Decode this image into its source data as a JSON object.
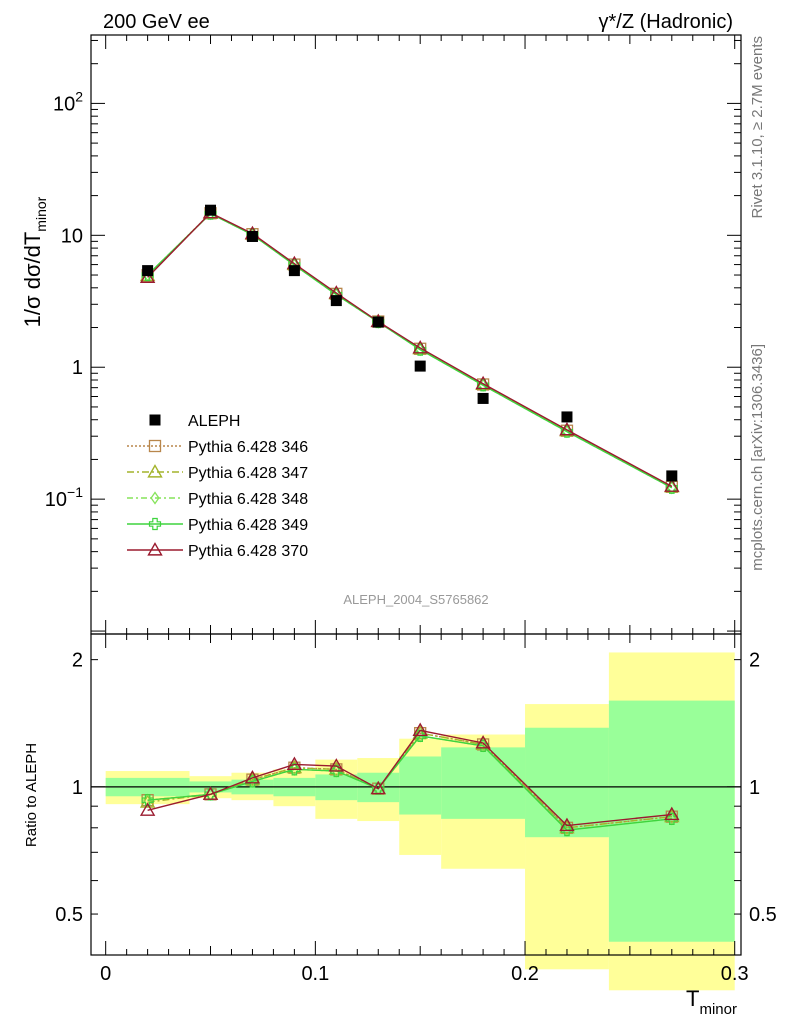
{
  "header": {
    "left": "200 GeV ee",
    "right": "γ*/Z (Hadronic)"
  },
  "side_labels": {
    "upper": "Rivet 3.1.10, ≥ 2.7M events",
    "lower": "mcplots.cern.ch [arXiv:1306.3436]"
  },
  "analysis_label": "ALEPH_2004_S5765862",
  "chart_data": [
    {
      "type": "scatter",
      "ylabel": "1/σ dσ/dT_minor",
      "ylabel_parts": {
        "prefix": "1/σ  dσ/dT",
        "sub": "minor"
      },
      "yscale": "log",
      "xlim": [
        -0.007,
        0.303
      ],
      "ylim": [
        0.0095,
        330
      ],
      "yticks": [
        {
          "value": 0.1,
          "label": "10",
          "sup": "−1"
        },
        {
          "value": 1,
          "label": "1",
          "sup": ""
        },
        {
          "value": 10,
          "label": "10",
          "sup": ""
        },
        {
          "value": 100,
          "label": "10",
          "sup": "2"
        }
      ],
      "legend": {
        "placement": "middle-left",
        "entries": [
          {
            "name": "ALEPH",
            "color": "#000000",
            "marker": "square",
            "dash": ""
          },
          {
            "name": "Pythia 6.428 346",
            "color": "#b8864b",
            "marker": "open-square",
            "dash": "2,2"
          },
          {
            "name": "Pythia 6.428 347",
            "color": "#a4b42c",
            "marker": "open-triangle",
            "dash": "7,3,2,3"
          },
          {
            "name": "Pythia 6.428 348",
            "color": "#86e35a",
            "marker": "open-diamond",
            "dash": "6,3,2,3"
          },
          {
            "name": "Pythia 6.428 349",
            "color": "#3ed43e",
            "marker": "open-cross",
            "dash": ""
          },
          {
            "name": "Pythia 6.428 370",
            "color": "#9b1b2f",
            "marker": "open-triangle",
            "dash": ""
          }
        ]
      },
      "x": [
        0.02,
        0.05,
        0.07,
        0.09,
        0.11,
        0.13,
        0.15,
        0.18,
        0.22,
        0.27
      ],
      "data": [
        5.4,
        15.5,
        9.8,
        5.4,
        3.2,
        2.2,
        1.02,
        0.58,
        0.42,
        0.15
      ],
      "series": [
        {
          "name": "Pythia 6.428 346",
          "values": [
            4.98,
            14.7,
            10.2,
            6.0,
            3.6,
            2.22,
            1.38,
            0.74,
            0.33,
            0.124
          ]
        },
        {
          "name": "Pythia 6.428 347",
          "values": [
            4.95,
            14.7,
            10.2,
            6.0,
            3.6,
            2.22,
            1.38,
            0.74,
            0.33,
            0.124
          ]
        },
        {
          "name": "Pythia 6.428 348",
          "values": [
            5.0,
            14.6,
            10.1,
            5.95,
            3.55,
            2.2,
            1.36,
            0.73,
            0.325,
            0.122
          ]
        },
        {
          "name": "Pythia 6.428 349",
          "values": [
            5.0,
            14.6,
            10.1,
            5.95,
            3.55,
            2.2,
            1.36,
            0.73,
            0.325,
            0.122
          ]
        },
        {
          "name": "Pythia 6.428 370",
          "values": [
            4.8,
            14.8,
            10.3,
            6.1,
            3.65,
            2.22,
            1.4,
            0.75,
            0.335,
            0.125
          ]
        }
      ]
    },
    {
      "type": "line",
      "ylabel": "Ratio to ALEPH",
      "xlabel": "T_minor",
      "xlabel_parts": {
        "prefix": "T",
        "sub": "minor"
      },
      "yscale": "log",
      "xlim": [
        -0.007,
        0.303
      ],
      "ylim": [
        0.4,
        2.3
      ],
      "yticks": [
        {
          "value": 0.5,
          "label": "0.5"
        },
        {
          "value": 1,
          "label": "1"
        },
        {
          "value": 2,
          "label": "2"
        }
      ],
      "xticks": [
        {
          "value": 0,
          "label": "0"
        },
        {
          "value": 0.1,
          "label": "0.1"
        },
        {
          "value": 0.2,
          "label": "0.2"
        },
        {
          "value": 0.3,
          "label": "0.3"
        }
      ],
      "bands": {
        "colors": {
          "total": "#ffff99",
          "stat": "#99ff99"
        },
        "bins": [
          {
            "x": [
              0.0,
              0.04
            ],
            "stat": [
              0.95,
              1.05
            ],
            "total": [
              0.91,
              1.09
            ]
          },
          {
            "x": [
              0.04,
              0.06
            ],
            "stat": [
              0.97,
              1.03
            ],
            "total": [
              0.94,
              1.06
            ]
          },
          {
            "x": [
              0.06,
              0.08
            ],
            "stat": [
              0.96,
              1.04
            ],
            "total": [
              0.93,
              1.08
            ]
          },
          {
            "x": [
              0.08,
              0.1
            ],
            "stat": [
              0.95,
              1.05
            ],
            "total": [
              0.9,
              1.1
            ]
          },
          {
            "x": [
              0.1,
              0.12
            ],
            "stat": [
              0.93,
              1.07
            ],
            "total": [
              0.84,
              1.16
            ]
          },
          {
            "x": [
              0.12,
              0.14
            ],
            "stat": [
              0.92,
              1.08
            ],
            "total": [
              0.83,
              1.17
            ]
          },
          {
            "x": [
              0.14,
              0.16
            ],
            "stat": [
              0.86,
              1.18
            ],
            "total": [
              0.69,
              1.3
            ]
          },
          {
            "x": [
              0.16,
              0.2
            ],
            "stat": [
              0.84,
              1.24
            ],
            "total": [
              0.64,
              1.33
            ]
          },
          {
            "x": [
              0.2,
              0.24
            ],
            "stat": [
              0.76,
              1.38
            ],
            "total": [
              0.37,
              1.57
            ]
          },
          {
            "x": [
              0.24,
              0.3
            ],
            "stat": [
              0.43,
              1.6
            ],
            "total": [
              0.33,
              2.08
            ]
          }
        ]
      },
      "x": [
        0.02,
        0.05,
        0.07,
        0.09,
        0.11,
        0.13,
        0.15,
        0.18,
        0.22,
        0.27
      ],
      "series": [
        {
          "name": "Pythia 6.428 346",
          "values": [
            0.93,
            0.96,
            1.04,
            1.11,
            1.1,
            0.99,
            1.34,
            1.26,
            0.8,
            0.85
          ]
        },
        {
          "name": "Pythia 6.428 347",
          "values": [
            0.92,
            0.96,
            1.04,
            1.11,
            1.1,
            0.99,
            1.34,
            1.26,
            0.8,
            0.85
          ]
        },
        {
          "name": "Pythia 6.428 348",
          "values": [
            0.93,
            0.96,
            1.03,
            1.1,
            1.09,
            0.99,
            1.32,
            1.25,
            0.79,
            0.84
          ]
        },
        {
          "name": "Pythia 6.428 349",
          "values": [
            0.93,
            0.96,
            1.03,
            1.1,
            1.09,
            0.99,
            1.32,
            1.25,
            0.79,
            0.84
          ]
        },
        {
          "name": "Pythia 6.428 370",
          "values": [
            0.88,
            0.96,
            1.05,
            1.13,
            1.12,
            0.99,
            1.36,
            1.27,
            0.81,
            0.86
          ]
        }
      ]
    }
  ]
}
